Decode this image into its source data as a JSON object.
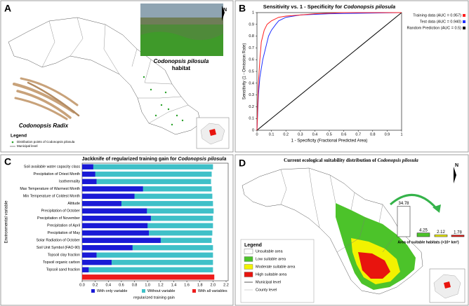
{
  "panels": {
    "a": {
      "label": "A",
      "species": "Codonopsis pilosula",
      "habitat": "habitat",
      "radix": "Codonopsis Radix",
      "legend_title": "Legend",
      "legend": [
        "Distribution points of Codonopsis pilosula",
        "Municipal level"
      ],
      "north": "N"
    },
    "d": {
      "label": "D",
      "title": [
        "Current ecological suitability distribution of ",
        "Codonopsis pilosula"
      ],
      "legend_title": "Legend",
      "legend": [
        {
          "name": "Unsuitable area",
          "color": "#ffffff"
        },
        {
          "name": "Low suitable area",
          "color": "#4cc32a"
        },
        {
          "name": "Moderate suitable area",
          "color": "#f2f200"
        },
        {
          "name": "High suitable area",
          "color": "#e8140e"
        },
        {
          "name": "Municipal level",
          "color": "#333333"
        },
        {
          "name": "County level",
          "color": "#aaaaaa"
        }
      ],
      "north": "N"
    }
  },
  "chart_data": [
    {
      "type": "line",
      "panel": "B",
      "title": [
        "Sensitivity vs. 1 - Specificity for ",
        "Codonopsis pilosula"
      ],
      "xlabel": "1 - Specificity (Fractional Predicted Area)",
      "ylabel": "Sensitivity (1 - Omission Rate)",
      "xlim": [
        0,
        1
      ],
      "ylim": [
        0,
        1
      ],
      "xticks": [
        0,
        0.1,
        0.2,
        0.3,
        0.4,
        0.5,
        0.6,
        0.7,
        0.8,
        0.9,
        1
      ],
      "yticks": [
        0,
        0.1,
        0.2,
        0.3,
        0.4,
        0.5,
        0.6,
        0.7,
        0.8,
        0.9,
        1
      ],
      "series": [
        {
          "name": "Training data (AUC = 0.957)",
          "color": "#ff2020",
          "x": [
            0,
            0.01,
            0.02,
            0.03,
            0.05,
            0.07,
            0.1,
            0.15,
            0.2,
            0.3,
            0.4,
            0.6,
            1
          ],
          "values": [
            0,
            0.4,
            0.6,
            0.75,
            0.85,
            0.9,
            0.93,
            0.96,
            0.97,
            0.98,
            0.99,
            1,
            1
          ]
        },
        {
          "name": "Test data (AUC = 0.940)",
          "color": "#2030ff",
          "x": [
            0,
            0.01,
            0.02,
            0.04,
            0.06,
            0.08,
            0.1,
            0.13,
            0.15,
            0.2,
            0.3,
            0.5,
            1
          ],
          "values": [
            0,
            0.3,
            0.45,
            0.6,
            0.7,
            0.8,
            0.85,
            0.9,
            0.93,
            0.96,
            0.98,
            0.99,
            1
          ]
        },
        {
          "name": "Random Prediction (AUC = 0.5)",
          "color": "#000000",
          "x": [
            0,
            1
          ],
          "values": [
            0,
            1
          ]
        }
      ]
    },
    {
      "type": "bar",
      "horizontal": true,
      "panel": "C",
      "title": [
        "Jackknife of regularized training gain for ",
        "Codonopsis pilosula"
      ],
      "xlabel": "regularized training gain",
      "ylabel": "Environmental variable",
      "categories": [
        "Soil available water capacity class",
        "Precipitation of Driest Month",
        "Isothermality",
        "Max Temperature of Warmest Month",
        "Min Temperature of Coldest Month",
        "Altitude",
        "Precipitation of October",
        "Precipitation of November",
        "Precipitation of April",
        "Precipitation of May",
        "Solar Radiation of October",
        "Soil Unit Symbol (FAO-90)",
        "Topsoil clay fraction",
        "Topsoil organic carbon",
        "Topsoil sand fraction"
      ],
      "xlim": [
        0,
        2.2
      ],
      "xticks": [
        {
          "value": 0,
          "label": "0.0"
        },
        {
          "value": 0.2,
          "label": "0.2"
        },
        {
          "value": 0.4,
          "label": "0.4"
        },
        {
          "value": 0.6,
          "label": "0.6"
        },
        {
          "value": 0.8,
          "label": "0.8"
        },
        {
          "value": 1,
          "label": "1.0"
        },
        {
          "value": 1.2,
          "label": "1.2"
        },
        {
          "value": 1.4,
          "label": "1.4"
        },
        {
          "value": 1.6,
          "label": "1.6"
        },
        {
          "value": 1.8,
          "label": "1.8"
        },
        {
          "value": 2,
          "label": "2.0"
        },
        {
          "value": 2.2,
          "label": "2.2"
        }
      ],
      "series": [
        {
          "name": "With only variable",
          "color": "#1a1ad6",
          "values": [
            0.17,
            0.2,
            0.22,
            0.93,
            0.8,
            0.6,
            0.99,
            1.05,
            1.0,
            1.02,
            1.2,
            0.77,
            0.22,
            0.45,
            0.1
          ]
        },
        {
          "name": "Without variable",
          "color": "#3fc0c8",
          "values": [
            2.0,
            1.98,
            1.97,
            1.98,
            1.99,
            2.0,
            2.01,
            2.0,
            2.0,
            1.99,
            1.98,
            2.0,
            2.0,
            2.0,
            2.0
          ]
        }
      ],
      "total": {
        "name": "With all variables",
        "color": "#ee1c1c",
        "value": 2.02
      }
    },
    {
      "type": "bar",
      "panel": "D",
      "xlabel": "Area of suitable habitats (×10⁴ km²)",
      "values": [
        34.78,
        4.25,
        2.12,
        1.78
      ],
      "colors": [
        "#ffffff",
        "#4cc32a",
        "#f2f200",
        "#e8140e"
      ]
    }
  ]
}
